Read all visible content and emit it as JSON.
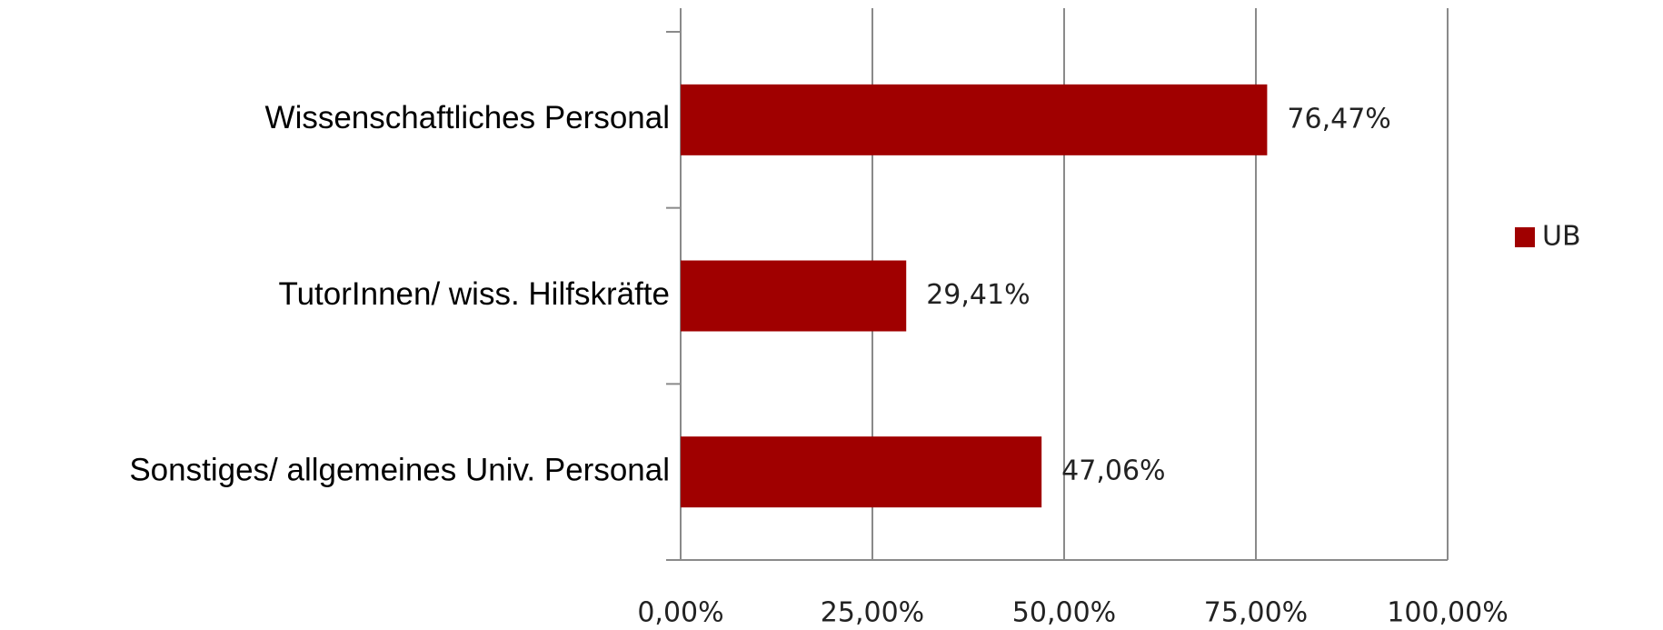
{
  "chart_data": {
    "type": "bar",
    "orientation": "horizontal",
    "categories": [
      "Wissenschaftliches Personal",
      "TutorInnen/ wiss. Hilfskräfte",
      "Sonstiges/ allgemeines Univ. Personal"
    ],
    "series": [
      {
        "name": "UB",
        "color": "#a00000",
        "values": [
          76.47,
          29.41,
          47.06
        ],
        "value_labels": [
          "76,47%",
          "29,41%",
          "47,06%"
        ]
      }
    ],
    "xlim": [
      0,
      100
    ],
    "xticks": [
      {
        "value": 0,
        "label": "0,00%"
      },
      {
        "value": 25,
        "label": "25,00%"
      },
      {
        "value": 50,
        "label": "50,00%"
      },
      {
        "value": 75,
        "label": "75,00%"
      },
      {
        "value": 100,
        "label": "100,00%"
      }
    ],
    "grid": true,
    "legend": "right"
  }
}
